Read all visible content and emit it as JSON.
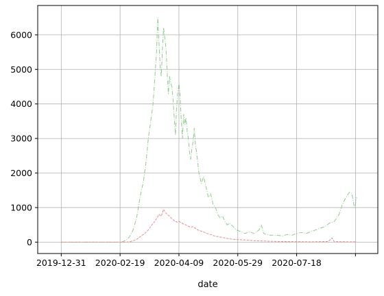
{
  "chart_data": {
    "type": "line",
    "title": "",
    "xlabel": "date",
    "ylabel": "",
    "grid": true,
    "legend": "none",
    "x_start": "2019-12-31",
    "x_end": "2020-09-07",
    "xlim": [
      "2019-12-11",
      "2020-09-25"
    ],
    "ylim": [
      -330,
      6850
    ],
    "x_ticks": [
      "2019-12-31",
      "2020-02-19",
      "2020-04-09",
      "2020-05-29",
      "2020-07-18",
      ""
    ],
    "x_tick_dates": [
      "2019-12-31",
      "2020-02-19",
      "2020-04-09",
      "2020-05-29",
      "2020-07-18",
      "2020-09-06"
    ],
    "y_ticks": [
      0,
      1000,
      2000,
      3000,
      4000,
      5000,
      6000
    ],
    "series": [
      {
        "color": "#8fc98f",
        "dash": "dashdot",
        "points": [
          [
            "2019-12-31",
            0
          ],
          [
            "2020-02-20",
            0
          ],
          [
            "2020-02-24",
            50
          ],
          [
            "2020-02-27",
            150
          ],
          [
            "2020-03-01",
            350
          ],
          [
            "2020-03-04",
            700
          ],
          [
            "2020-03-07",
            1300
          ],
          [
            "2020-03-10",
            1800
          ],
          [
            "2020-03-12",
            2300
          ],
          [
            "2020-03-14",
            3000
          ],
          [
            "2020-03-16",
            3500
          ],
          [
            "2020-03-18",
            4000
          ],
          [
            "2020-03-20",
            5000
          ],
          [
            "2020-03-21",
            5500
          ],
          [
            "2020-03-22",
            6500
          ],
          [
            "2020-03-23",
            5800
          ],
          [
            "2020-03-24",
            5100
          ],
          [
            "2020-03-25",
            4800
          ],
          [
            "2020-03-26",
            5600
          ],
          [
            "2020-03-27",
            6200
          ],
          [
            "2020-03-28",
            5900
          ],
          [
            "2020-03-29",
            5600
          ],
          [
            "2020-03-30",
            4900
          ],
          [
            "2020-03-31",
            4300
          ],
          [
            "2020-04-01",
            4800
          ],
          [
            "2020-04-02",
            4600
          ],
          [
            "2020-04-03",
            4500
          ],
          [
            "2020-04-04",
            4100
          ],
          [
            "2020-04-05",
            3600
          ],
          [
            "2020-04-06",
            3100
          ],
          [
            "2020-04-07",
            3900
          ],
          [
            "2020-04-08",
            4300
          ],
          [
            "2020-04-09",
            4600
          ],
          [
            "2020-04-10",
            4200
          ],
          [
            "2020-04-11",
            3500
          ],
          [
            "2020-04-12",
            3000
          ],
          [
            "2020-04-13",
            3700
          ],
          [
            "2020-04-14",
            3400
          ],
          [
            "2020-04-15",
            3600
          ],
          [
            "2020-04-16",
            3200
          ],
          [
            "2020-04-17",
            3000
          ],
          [
            "2020-04-18",
            2600
          ],
          [
            "2020-04-19",
            2400
          ],
          [
            "2020-04-20",
            2700
          ],
          [
            "2020-04-21",
            2900
          ],
          [
            "2020-04-22",
            3300
          ],
          [
            "2020-04-23",
            2800
          ],
          [
            "2020-04-24",
            2600
          ],
          [
            "2020-04-26",
            2000
          ],
          [
            "2020-04-28",
            1700
          ],
          [
            "2020-04-30",
            1900
          ],
          [
            "2020-05-02",
            1600
          ],
          [
            "2020-05-04",
            1300
          ],
          [
            "2020-05-06",
            1400
          ],
          [
            "2020-05-08",
            1100
          ],
          [
            "2020-05-10",
            1000
          ],
          [
            "2020-05-12",
            800
          ],
          [
            "2020-05-14",
            700
          ],
          [
            "2020-05-16",
            750
          ],
          [
            "2020-05-18",
            600
          ],
          [
            "2020-05-20",
            500
          ],
          [
            "2020-05-22",
            550
          ],
          [
            "2020-05-25",
            450
          ],
          [
            "2020-05-28",
            350
          ],
          [
            "2020-06-01",
            300
          ],
          [
            "2020-06-04",
            250
          ],
          [
            "2020-06-08",
            300
          ],
          [
            "2020-06-12",
            250
          ],
          [
            "2020-06-16",
            350
          ],
          [
            "2020-06-18",
            500
          ],
          [
            "2020-06-20",
            250
          ],
          [
            "2020-06-25",
            200
          ],
          [
            "2020-07-01",
            200
          ],
          [
            "2020-07-06",
            180
          ],
          [
            "2020-07-10",
            220
          ],
          [
            "2020-07-14",
            200
          ],
          [
            "2020-07-18",
            250
          ],
          [
            "2020-07-22",
            280
          ],
          [
            "2020-07-26",
            250
          ],
          [
            "2020-07-30",
            300
          ],
          [
            "2020-08-03",
            350
          ],
          [
            "2020-08-07",
            400
          ],
          [
            "2020-08-11",
            450
          ],
          [
            "2020-08-15",
            550
          ],
          [
            "2020-08-19",
            600
          ],
          [
            "2020-08-23",
            800
          ],
          [
            "2020-08-26",
            1100
          ],
          [
            "2020-08-29",
            1300
          ],
          [
            "2020-09-01",
            1450
          ],
          [
            "2020-09-03",
            1400
          ],
          [
            "2020-09-05",
            1000
          ],
          [
            "2020-09-06",
            1100
          ],
          [
            "2020-09-07",
            1300
          ]
        ]
      },
      {
        "color": "#e08e8e",
        "dash": "dashed",
        "points": [
          [
            "2019-12-31",
            0
          ],
          [
            "2020-02-24",
            0
          ],
          [
            "2020-02-28",
            20
          ],
          [
            "2020-03-02",
            50
          ],
          [
            "2020-03-05",
            100
          ],
          [
            "2020-03-08",
            180
          ],
          [
            "2020-03-11",
            250
          ],
          [
            "2020-03-14",
            350
          ],
          [
            "2020-03-17",
            500
          ],
          [
            "2020-03-20",
            620
          ],
          [
            "2020-03-23",
            800
          ],
          [
            "2020-03-25",
            750
          ],
          [
            "2020-03-26",
            850
          ],
          [
            "2020-03-27",
            950
          ],
          [
            "2020-03-28",
            880
          ],
          [
            "2020-03-30",
            800
          ],
          [
            "2020-04-01",
            750
          ],
          [
            "2020-04-03",
            680
          ],
          [
            "2020-04-05",
            620
          ],
          [
            "2020-04-07",
            580
          ],
          [
            "2020-04-09",
            600
          ],
          [
            "2020-04-11",
            560
          ],
          [
            "2020-04-13",
            520
          ],
          [
            "2020-04-15",
            500
          ],
          [
            "2020-04-17",
            460
          ],
          [
            "2020-04-19",
            430
          ],
          [
            "2020-04-21",
            450
          ],
          [
            "2020-04-23",
            400
          ],
          [
            "2020-04-25",
            350
          ],
          [
            "2020-04-27",
            330
          ],
          [
            "2020-04-29",
            300
          ],
          [
            "2020-05-01",
            280
          ],
          [
            "2020-05-03",
            250
          ],
          [
            "2020-05-06",
            220
          ],
          [
            "2020-05-09",
            180
          ],
          [
            "2020-05-12",
            160
          ],
          [
            "2020-05-15",
            140
          ],
          [
            "2020-05-18",
            120
          ],
          [
            "2020-05-21",
            100
          ],
          [
            "2020-05-25",
            80
          ],
          [
            "2020-05-30",
            70
          ],
          [
            "2020-06-05",
            60
          ],
          [
            "2020-06-12",
            40
          ],
          [
            "2020-06-20",
            30
          ],
          [
            "2020-07-01",
            20
          ],
          [
            "2020-07-15",
            15
          ],
          [
            "2020-08-01",
            10
          ],
          [
            "2020-08-14",
            20
          ],
          [
            "2020-08-17",
            120
          ],
          [
            "2020-08-19",
            15
          ],
          [
            "2020-09-01",
            10
          ],
          [
            "2020-09-07",
            10
          ]
        ]
      }
    ]
  }
}
